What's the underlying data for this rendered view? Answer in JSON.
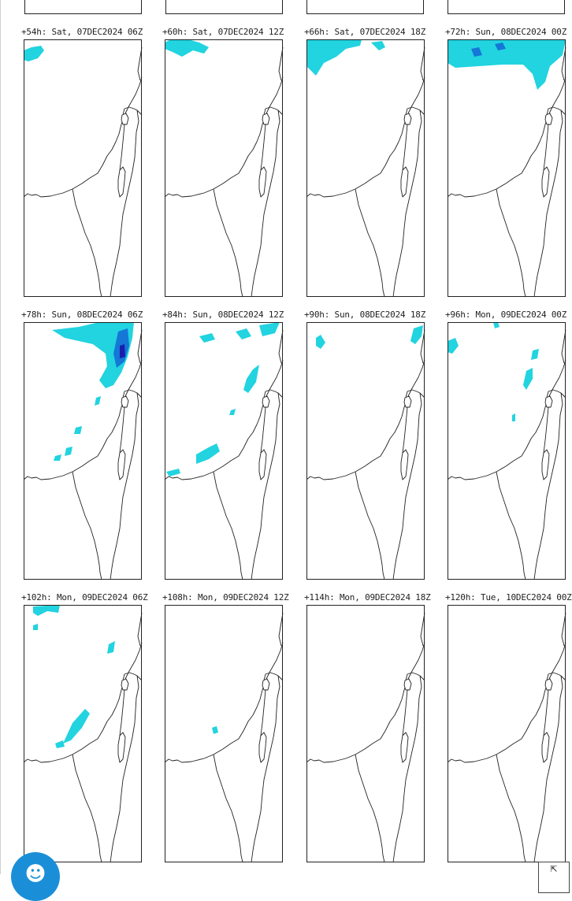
{
  "panels": [
    {
      "label": "+54h: Sat, 07DEC2024 06Z",
      "precip": "p54"
    },
    {
      "label": "+60h: Sat, 07DEC2024 12Z",
      "precip": "p60"
    },
    {
      "label": "+66h: Sat, 07DEC2024 18Z",
      "precip": "p66"
    },
    {
      "label": "+72h: Sun, 08DEC2024 00Z",
      "precip": "p72"
    },
    {
      "label": "+78h: Sun, 08DEC2024 06Z",
      "precip": "p78"
    },
    {
      "label": "+84h: Sun, 08DEC2024 12Z",
      "precip": "p84"
    },
    {
      "label": "+90h: Sun, 08DEC2024 18Z",
      "precip": "p90"
    },
    {
      "label": "+96h: Mon, 09DEC2024 00Z",
      "precip": "p96"
    },
    {
      "label": "+102h: Mon, 09DEC2024 06Z",
      "precip": "p102"
    },
    {
      "label": "+108h: Mon, 09DEC2024 12Z",
      "precip": "p108"
    },
    {
      "label": "+114h: Mon, 09DEC2024 18Z",
      "precip": "p114"
    },
    {
      "label": "+120h: Tue, 10DEC2024 00Z",
      "precip": "p120"
    }
  ],
  "colors": {
    "precip_light": "#22d3e0",
    "precip_medium": "#1577d6",
    "precip_heavy": "#1a1fae",
    "coastline": "#222222",
    "accessibility_button": "#1a8fd8"
  },
  "icons": {
    "accessibility": "accessibility-icon",
    "expand": "expand-icon"
  }
}
